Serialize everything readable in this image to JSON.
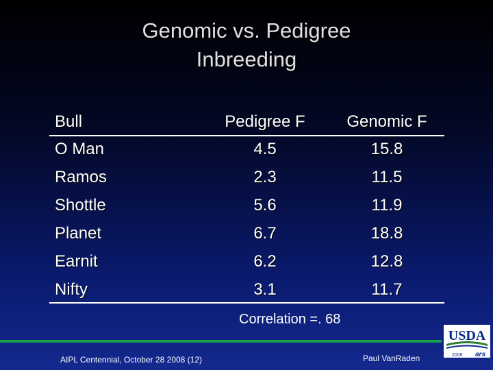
{
  "slide": {
    "title_line1": "Genomic vs. Pedigree",
    "title_line2": "Inbreeding"
  },
  "table": {
    "headers": [
      "Bull",
      "Pedigree F",
      "Genomic F"
    ],
    "rows": [
      [
        "O Man",
        "4.5",
        "15.8"
      ],
      [
        "Ramos",
        "2.3",
        "11.5"
      ],
      [
        "Shottle",
        "5.6",
        "11.9"
      ],
      [
        "Planet",
        "6.7",
        "18.8"
      ],
      [
        "Earnit",
        "6.2",
        "12.8"
      ],
      [
        "Nifty",
        "3.1",
        "11.7"
      ]
    ]
  },
  "correlation_text": "Correlation =. 68",
  "footer": {
    "left": "AIPL Centennial, October 28 2008 (12)",
    "right": "Paul VanRaden"
  },
  "logo": {
    "text": "USDA",
    "year": "2008",
    "sub": "ars"
  },
  "colors": {
    "footer_line": "#17a34a",
    "logo_bg": "#ffffff",
    "logo_text": "#0a2a8a"
  }
}
